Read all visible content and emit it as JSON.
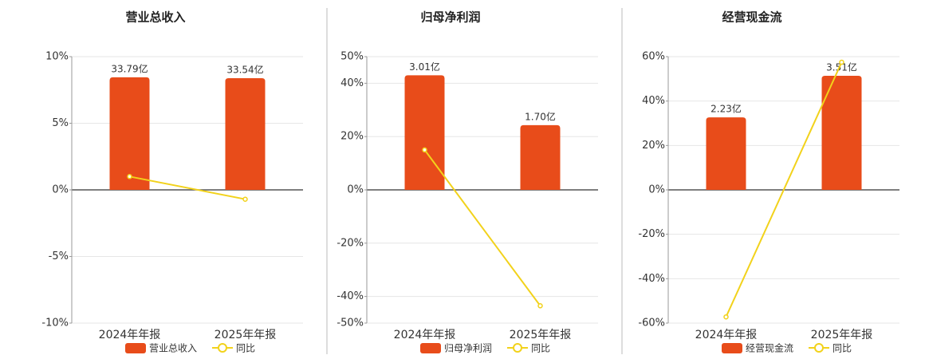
{
  "chart_data": [
    {
      "type": "combo",
      "title": "营业总收入",
      "categories": [
        "2024年年报",
        "2025年年报"
      ],
      "ylim": [
        -10,
        10
      ],
      "yticks": [
        {
          "value": 10,
          "label": "10%"
        },
        {
          "value": 5,
          "label": "5%"
        },
        {
          "value": 0,
          "label": "0%"
        },
        {
          "value": -5,
          "label": "-5%"
        },
        {
          "value": -10,
          "label": "-10%"
        }
      ],
      "y2lim": [
        -40,
        40
      ],
      "grid": true,
      "series": [
        {
          "name": "营业总收入",
          "type": "bar",
          "axis": "y2",
          "color": "#e84c1a",
          "values": [
            33.79,
            33.54
          ],
          "value_labels": [
            "33.79亿",
            "33.54亿"
          ]
        },
        {
          "name": "同比",
          "type": "line",
          "color": "#f2d21b",
          "values": [
            1.0,
            -0.7
          ]
        }
      ]
    },
    {
      "type": "combo",
      "title": "归母净利润",
      "categories": [
        "2024年年报",
        "2025年年报"
      ],
      "ylim": [
        -50,
        50
      ],
      "yticks": [
        {
          "value": 50,
          "label": "50%"
        },
        {
          "value": 40,
          "label": "40%"
        },
        {
          "value": 20,
          "label": "20%"
        },
        {
          "value": 0,
          "label": "0%"
        },
        {
          "value": -20,
          "label": "-20%"
        },
        {
          "value": -40,
          "label": "-40%"
        },
        {
          "value": -50,
          "label": "-50%"
        }
      ],
      "y2lim": [
        -3.5,
        3.5
      ],
      "grid": true,
      "series": [
        {
          "name": "归母净利润",
          "type": "bar",
          "axis": "y2",
          "color": "#e84c1a",
          "values": [
            3.01,
            1.7
          ],
          "value_labels": [
            "3.01亿",
            "1.70亿"
          ]
        },
        {
          "name": "同比",
          "type": "line",
          "color": "#f2d21b",
          "values": [
            15.0,
            -43.5
          ]
        }
      ]
    },
    {
      "type": "combo",
      "title": "经营现金流",
      "categories": [
        "2024年年报",
        "2025年年报"
      ],
      "ylim": [
        -60,
        60
      ],
      "yticks": [
        {
          "value": 60,
          "label": "60%"
        },
        {
          "value": 40,
          "label": "40%"
        },
        {
          "value": 20,
          "label": "20%"
        },
        {
          "value": 0,
          "label": "0%"
        },
        {
          "value": -20,
          "label": "-20%"
        },
        {
          "value": -40,
          "label": "-40%"
        },
        {
          "value": -60,
          "label": "-60%"
        }
      ],
      "y2lim": [
        -4.1,
        4.1
      ],
      "grid": true,
      "series": [
        {
          "name": "经营现金流",
          "type": "bar",
          "axis": "y2",
          "color": "#e84c1a",
          "values": [
            2.23,
            3.51
          ],
          "value_labels": [
            "2.23亿",
            "3.51亿"
          ]
        },
        {
          "name": "同比",
          "type": "line",
          "color": "#f2d21b",
          "values": [
            -57.2,
            57.5
          ]
        }
      ]
    }
  ]
}
